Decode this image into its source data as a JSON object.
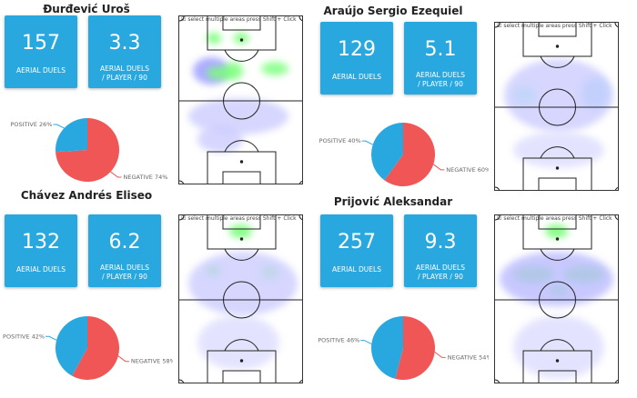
{
  "pitch_hint": "select multiple areas press Shift + Click",
  "colors": {
    "box": "#29a8e0",
    "positive": "#29a8e0",
    "negative": "#f05656"
  },
  "players": [
    {
      "name": "Đurđević Uroš",
      "aerial_duels": "157",
      "aerial_duels_p90": "3.3",
      "label_duels": "AERIAL DUELS",
      "label_p90": "AERIAL DUELS / PLAYER / 90",
      "positive_label": "POSITIVE 26%",
      "negative_label": "NEGATIVE 74%",
      "positive_pct": 26,
      "negative_pct": 74
    },
    {
      "name": "Araújo Sergio Ezequiel",
      "aerial_duels": "129",
      "aerial_duels_p90": "5.1",
      "label_duels": "AERIAL DUELS",
      "label_p90": "AERIAL DUELS / PLAYER / 90",
      "positive_label": "POSITIVE 40%",
      "negative_label": "NEGATIVE 60%",
      "positive_pct": 40,
      "negative_pct": 60
    },
    {
      "name": "Chávez Andrés Eliseo",
      "aerial_duels": "132",
      "aerial_duels_p90": "6.2",
      "label_duels": "AERIAL DUELS",
      "label_p90": "AERIAL DUELS / PLAYER / 90",
      "positive_label": "POSITIVE 42%",
      "negative_label": "NEGATIVE 58%",
      "positive_pct": 42,
      "negative_pct": 58
    },
    {
      "name": "Prijović Aleksandar",
      "aerial_duels": "257",
      "aerial_duels_p90": "9.3",
      "label_duels": "AERIAL DUELS",
      "label_p90": "AERIAL DUELS / PLAYER / 90",
      "positive_label": "POSITIVE 46%",
      "negative_label": "NEGATIVE 54%",
      "positive_pct": 46,
      "negative_pct": 54
    }
  ]
}
